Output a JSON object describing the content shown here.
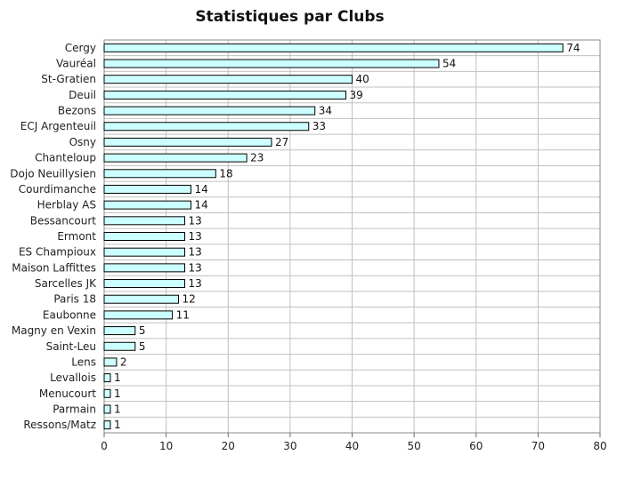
{
  "chart_data": {
    "type": "bar",
    "orientation": "horizontal",
    "title": "Statistiques par Clubs",
    "categories": [
      "Cergy",
      "Vauréal",
      "St-Gratien",
      "Deuil",
      "Bezons",
      "ECJ Argenteuil",
      "Osny",
      "Chanteloup",
      "Dojo Neuillysien",
      "Courdimanche",
      "Herblay AS",
      "Bessancourt",
      "Ermont",
      "ES Champioux",
      "Maison Laffittes",
      "Sarcelles JK",
      "Paris 18",
      "Eaubonne",
      "Magny en Vexin",
      "Saint-Leu",
      "Lens",
      "Levallois",
      "Menucourt",
      "Parmain",
      "Ressons/Matz"
    ],
    "values": [
      74,
      54,
      40,
      39,
      34,
      33,
      27,
      23,
      18,
      14,
      14,
      13,
      13,
      13,
      13,
      13,
      12,
      11,
      5,
      5,
      2,
      1,
      1,
      1,
      1
    ],
    "xlim": [
      0,
      80
    ],
    "xticks": [
      0,
      10,
      20,
      30,
      40,
      50,
      60,
      70,
      80
    ],
    "grid": true,
    "bar_color": "#ccffff",
    "bar_edge_color": "#000000",
    "grid_color": "#c0c0c0"
  }
}
